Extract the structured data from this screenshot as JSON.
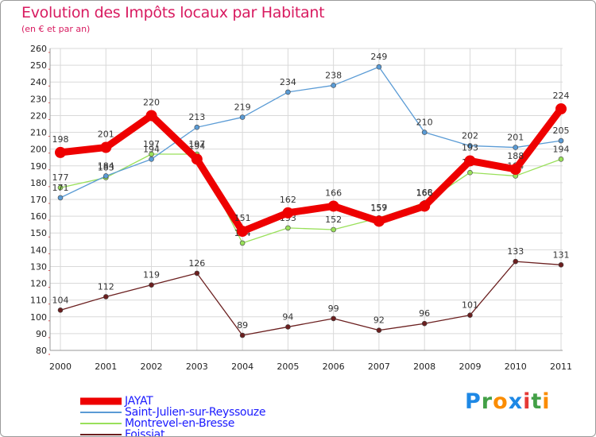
{
  "title": "Evolution des Impôts locaux par Habitant",
  "subtitle": "(en € et par an)",
  "logo": {
    "text": "Proxiti",
    "colors": [
      "#1e88e5",
      "#43a047",
      "#fb8c00",
      "#1e88e5",
      "#e53935",
      "#43a047",
      "#fb8c00"
    ]
  },
  "chart_data": {
    "type": "line",
    "x": [
      "2000",
      "2001",
      "2002",
      "2003",
      "2004",
      "2005",
      "2006",
      "2007",
      "2008",
      "2009",
      "2010",
      "2011"
    ],
    "ylim": [
      80,
      260
    ],
    "ytick_step": 10,
    "grid": true,
    "series": [
      {
        "name": "Foissiat",
        "color": "#6b1f1f",
        "values": [
          104,
          112,
          119,
          126,
          89,
          94,
          99,
          92,
          96,
          101,
          133,
          131
        ],
        "labels": [
          "104",
          "112",
          "119",
          "126",
          "89",
          "94",
          "99",
          "92",
          "96",
          "101",
          "133",
          "131"
        ]
      },
      {
        "name": "Montrevel-en-Bresse",
        "color": "#99e05a",
        "values": [
          177,
          183,
          197,
          197,
          144,
          153,
          152,
          159,
          168,
          186,
          184,
          194
        ],
        "labels": [
          "177",
          "183",
          "197",
          "197",
          "144",
          "153",
          "152",
          "159",
          "168",
          "186",
          "184",
          "194"
        ]
      },
      {
        "name": "Saint-Julien-sur-Reyssouze",
        "color": "#5a9bd5",
        "values": [
          171,
          184,
          194,
          213,
          219,
          234,
          238,
          249,
          210,
          202,
          201,
          205
        ],
        "labels": [
          "171",
          "184",
          "194",
          "213",
          "219",
          "234",
          "238",
          "249",
          "210",
          "202",
          "201",
          "205"
        ]
      },
      {
        "name": "JAYAT",
        "color": "#ee0000",
        "values": [
          198,
          201,
          220,
          194,
          151,
          162,
          166,
          157,
          166,
          193,
          188,
          224
        ],
        "labels": [
          "198",
          "201",
          "220",
          "194",
          "151",
          "162",
          "166",
          "157",
          "166",
          "193",
          "188",
          "224"
        ]
      }
    ],
    "legend": [
      "JAYAT",
      "Saint-Julien-sur-Reyssouze",
      "Montrevel-en-Bresse",
      "Foissiat"
    ],
    "legend_position": "bottom-left"
  }
}
